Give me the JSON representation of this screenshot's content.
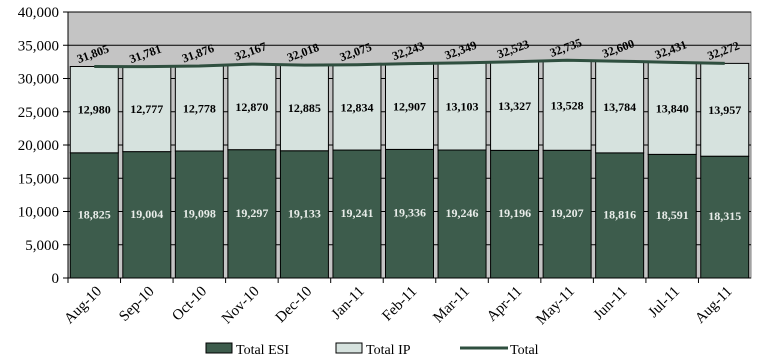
{
  "chart_data": {
    "type": "bar",
    "stacked": true,
    "categories": [
      "Aug-10",
      "Sep-10",
      "Oct-10",
      "Nov-10",
      "Dec-10",
      "Jan-11",
      "Feb-11",
      "Mar-11",
      "Apr-11",
      "May-11",
      "Jun-11",
      "Jul-11",
      "Aug-11"
    ],
    "series": [
      {
        "name": "Total ESI",
        "values": [
          18825,
          19004,
          19098,
          19297,
          19133,
          19241,
          19336,
          19246,
          19196,
          19207,
          18816,
          18591,
          18315
        ]
      },
      {
        "name": "Total IP",
        "values": [
          12980,
          12777,
          12778,
          12870,
          12885,
          12834,
          12907,
          13103,
          13327,
          13528,
          13784,
          13840,
          13957
        ]
      },
      {
        "name": "Total",
        "values": [
          31805,
          31781,
          31876,
          32167,
          32018,
          32075,
          32243,
          32349,
          32523,
          32735,
          32600,
          32431,
          32272
        ]
      }
    ],
    "labels": {
      "esi": [
        "18,825",
        "19,004",
        "19,098",
        "19,297",
        "19,133",
        "19,241",
        "19,336",
        "19,246",
        "19,196",
        "19,207",
        "18,816",
        "18,591",
        "18,315"
      ],
      "ip": [
        "12,980",
        "12,777",
        "12,778",
        "12,870",
        "12,885",
        "12,834",
        "12,907",
        "13,103",
        "13,327",
        "13,528",
        "13,784",
        "13,840",
        "13,957"
      ],
      "total": [
        "31,805",
        "31,781",
        "31,876",
        "32,167",
        "32,018",
        "32,075",
        "32,243",
        "32,349",
        "32,523",
        "32,735",
        "32,600",
        "32,431",
        "32,272"
      ]
    },
    "y_ticks": [
      "0",
      "5,000",
      "10,000",
      "15,000",
      "20,000",
      "25,000",
      "30,000",
      "35,000",
      "40,000"
    ],
    "ylim": [
      0,
      40000
    ],
    "grid": true,
    "legend_position": "bottom",
    "colors": {
      "esi": "#3d5c4c",
      "ip": "#d6e2de",
      "total": "#2f4f3f",
      "plot_bg": "#c4c4c4",
      "grid": "#000000"
    }
  }
}
